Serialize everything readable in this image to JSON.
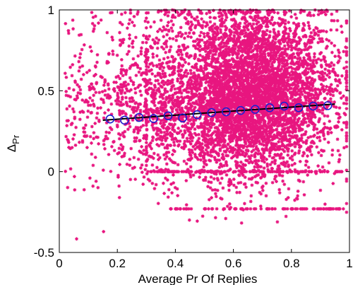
{
  "chart_data": {
    "type": "scatter",
    "title": "",
    "xlabel": "Average Pr Of Replies",
    "ylabel": {
      "main": "Δ",
      "subscript": "Pr"
    },
    "xlim": [
      0,
      1
    ],
    "ylim": [
      -0.5,
      1
    ],
    "grid": false,
    "legend": "none",
    "x_ticks": [
      {
        "value": 0,
        "label": "0"
      },
      {
        "value": 0.2,
        "label": "0.2"
      },
      {
        "value": 0.4,
        "label": "0.4"
      },
      {
        "value": 0.6,
        "label": "0.6"
      },
      {
        "value": 0.8,
        "label": "0.8"
      },
      {
        "value": 1,
        "label": "1"
      }
    ],
    "y_ticks": [
      {
        "value": -0.5,
        "label": "-0.5"
      },
      {
        "value": 0,
        "label": "0"
      },
      {
        "value": 0.5,
        "label": "0.5"
      },
      {
        "value": 1,
        "label": "1"
      }
    ],
    "series": [
      {
        "role": "scatter-points",
        "color": "#e8157f",
        "marker": "asterisk",
        "approx_count": 6000,
        "x_range": [
          0.02,
          0.99
        ],
        "y_range": [
          -0.42,
          1.0
        ],
        "density_peak": {
          "x": 0.65,
          "y": 0.45
        },
        "bands_y": [
          0.0,
          -0.23
        ]
      },
      {
        "role": "binned-means",
        "color": "#1f1fd0",
        "marker": "circle",
        "x": [
          0.175,
          0.225,
          0.275,
          0.325,
          0.375,
          0.425,
          0.475,
          0.525,
          0.575,
          0.625,
          0.675,
          0.725,
          0.775,
          0.825,
          0.875,
          0.925
        ],
        "y": [
          0.325,
          0.318,
          0.335,
          0.328,
          0.345,
          0.332,
          0.352,
          0.365,
          0.37,
          0.378,
          0.385,
          0.395,
          0.405,
          0.395,
          0.405,
          0.408
        ]
      },
      {
        "role": "fit-line",
        "color": "#000000",
        "x": [
          0.15,
          0.95
        ],
        "y": [
          0.318,
          0.418
        ]
      }
    ]
  }
}
